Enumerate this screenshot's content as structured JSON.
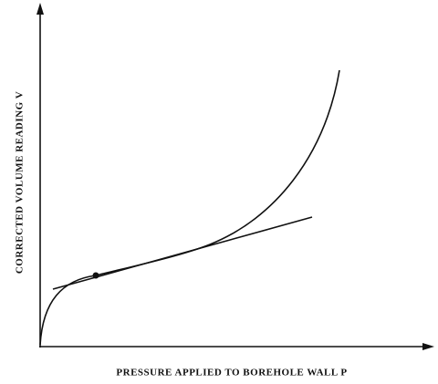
{
  "axes": {
    "y_label": "CORRECTED VOLUME READING  V",
    "x_label": "PRESSURE APPLIED TO BOREHOLE WALL  P"
  }
}
